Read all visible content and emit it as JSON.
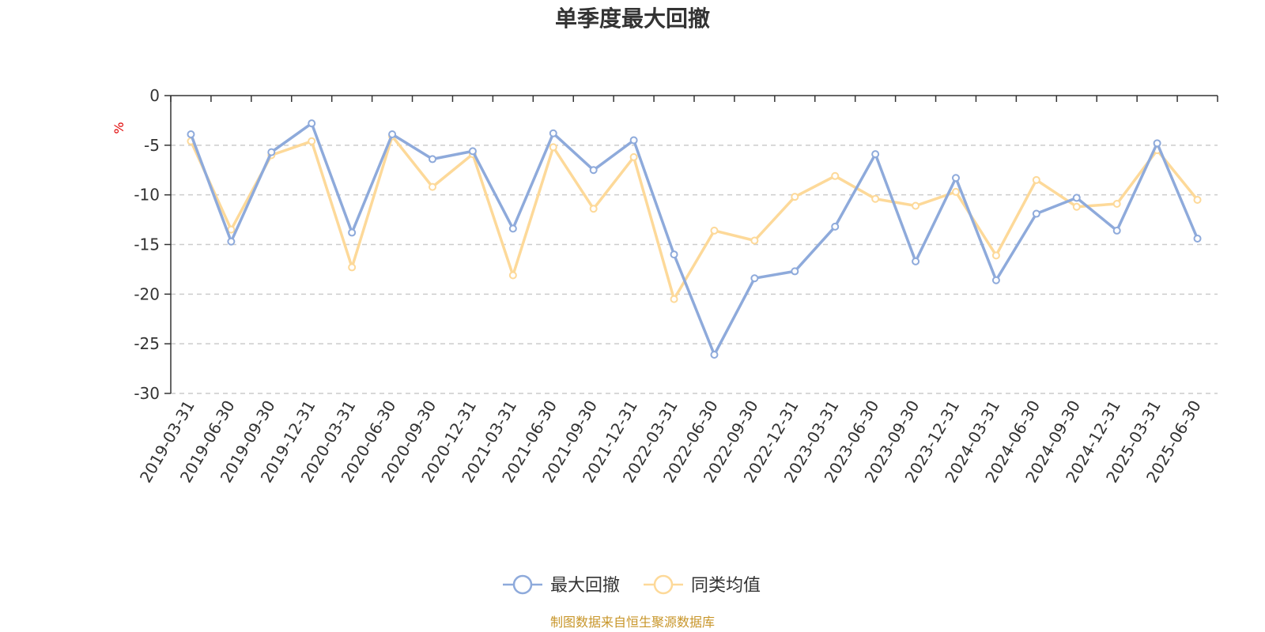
{
  "chart_data": {
    "type": "line",
    "title": "单季度最大回撤",
    "ylabel": "%",
    "ylim": [
      -30,
      0
    ],
    "yticks": [
      0,
      -5,
      -10,
      -15,
      -20,
      -25,
      -30
    ],
    "grid": true,
    "legend_position": "bottom",
    "x": [
      "2019-03-31",
      "2019-06-30",
      "2019-09-30",
      "2019-12-31",
      "2020-03-31",
      "2020-06-30",
      "2020-09-30",
      "2020-12-31",
      "2021-03-31",
      "2021-06-30",
      "2021-09-30",
      "2021-12-31",
      "2022-03-31",
      "2022-06-30",
      "2022-09-30",
      "2022-12-31",
      "2023-03-31",
      "2023-06-30",
      "2023-09-30",
      "2023-12-31",
      "2024-03-31",
      "2024-06-30",
      "2024-09-30",
      "2024-12-31",
      "2025-03-31",
      "2025-06-30"
    ],
    "series": [
      {
        "name": "最大回撤",
        "color": "#8eaadb",
        "values": [
          -3.9,
          -14.7,
          -5.7,
          -2.8,
          -13.8,
          -3.9,
          -6.4,
          -5.6,
          -13.4,
          -3.8,
          -7.5,
          -4.5,
          -16.0,
          -26.1,
          -18.4,
          -17.7,
          -13.2,
          -5.9,
          -16.7,
          -8.3,
          -18.6,
          -11.9,
          -10.3,
          -13.6,
          -4.8,
          -14.4
        ]
      },
      {
        "name": "同类均值",
        "color": "#fdd999",
        "values": [
          -4.6,
          -13.5,
          -6.0,
          -4.6,
          -17.3,
          -4.1,
          -9.2,
          -5.9,
          -18.1,
          -5.2,
          -11.4,
          -6.2,
          -20.5,
          -13.6,
          -14.6,
          -10.2,
          -8.1,
          -10.4,
          -11.1,
          -9.7,
          -16.1,
          -8.5,
          -11.2,
          -10.9,
          -5.5,
          -10.5
        ]
      }
    ]
  },
  "footer": {
    "source": "制图数据来自恒生聚源数据库"
  }
}
